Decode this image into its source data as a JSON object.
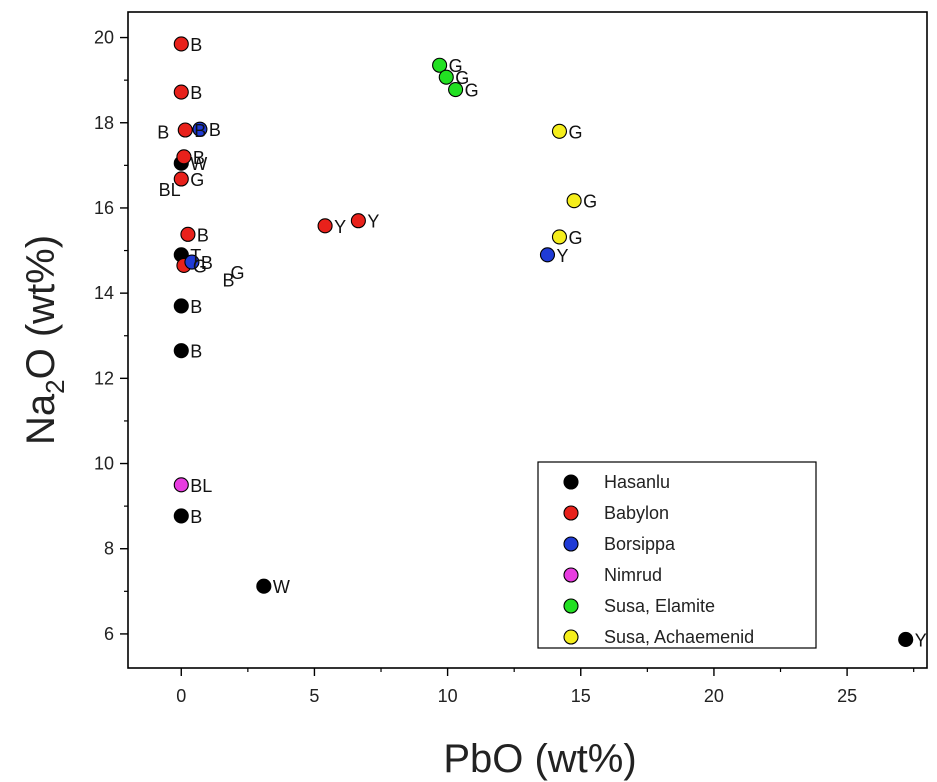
{
  "chart_data": {
    "type": "scatter",
    "xlabel": "PbO (wt%)",
    "ylabel_main": "Na",
    "ylabel_sub": "2",
    "ylabel_tail": "O (wt%)",
    "xlim": [
      -2,
      28
    ],
    "ylim": [
      5.2,
      20.6
    ],
    "xticks": [
      0,
      5,
      10,
      15,
      20,
      25
    ],
    "yticks": [
      6,
      8,
      10,
      12,
      14,
      16,
      18,
      20
    ],
    "legend_position": "bottom-right",
    "series": [
      {
        "name": "Hasanlu",
        "color": "#000000",
        "points": [
          {
            "x": 0.0,
            "y": 17.05,
            "label": "W"
          },
          {
            "x": 0.0,
            "y": 14.9,
            "label": "T"
          },
          {
            "x": 0.0,
            "y": 13.7,
            "label": "B"
          },
          {
            "x": 0.0,
            "y": 12.65,
            "label": "B"
          },
          {
            "x": 0.0,
            "y": 8.77,
            "label": "B"
          },
          {
            "x": 3.1,
            "y": 7.12,
            "label": "W"
          },
          {
            "x": 27.2,
            "y": 5.87,
            "label": "Y"
          }
        ]
      },
      {
        "name": "Babylon",
        "color": "#e8211b",
        "points": [
          {
            "x": 0.0,
            "y": 19.85,
            "label": "B"
          },
          {
            "x": 0.0,
            "y": 18.72,
            "label": "B"
          },
          {
            "x": 0.15,
            "y": 17.83,
            "label": "B"
          },
          {
            "x": 0.1,
            "y": 17.2,
            "label": "B"
          },
          {
            "x": 0.0,
            "y": 16.68,
            "label": "G"
          },
          {
            "x": 0.25,
            "y": 15.38,
            "label": "B"
          },
          {
            "x": 0.1,
            "y": 14.65,
            "label": "G"
          },
          {
            "x": 5.4,
            "y": 15.58,
            "label": "Y"
          },
          {
            "x": 6.65,
            "y": 15.7,
            "label": "Y"
          }
        ]
      },
      {
        "name": "Borsippa",
        "color": "#1f3bd6",
        "points": [
          {
            "x": 0.7,
            "y": 17.85,
            "label": "B"
          },
          {
            "x": 0.4,
            "y": 14.73,
            "label": "B"
          },
          {
            "x": 13.75,
            "y": 14.9,
            "label": "Y"
          }
        ]
      },
      {
        "name": "Nimrud",
        "color": "#e83ce0",
        "points": [
          {
            "x": 0.0,
            "y": 9.5,
            "label": "BL"
          }
        ]
      },
      {
        "name": "Susa, Elamite",
        "color": "#22e022",
        "points": [
          {
            "x": 9.7,
            "y": 19.35,
            "label": "G"
          },
          {
            "x": 9.95,
            "y": 19.07,
            "label": "G"
          },
          {
            "x": 10.3,
            "y": 18.78,
            "label": "G"
          }
        ]
      },
      {
        "name": "Susa, Achaemenid",
        "color": "#f5ee1c",
        "points": [
          {
            "x": 14.2,
            "y": 17.8,
            "label": "G"
          },
          {
            "x": 14.75,
            "y": 16.17,
            "label": "G"
          },
          {
            "x": 14.2,
            "y": 15.32,
            "label": "G"
          }
        ]
      }
    ],
    "extra_labels": [
      {
        "text": "B",
        "x": -0.9,
        "y": 17.8
      },
      {
        "text": "BL",
        "x": -0.85,
        "y": 16.45
      },
      {
        "text": "B",
        "x": 1.55,
        "y": 14.32
      },
      {
        "text": "G",
        "x": 1.85,
        "y": 14.5
      }
    ]
  }
}
